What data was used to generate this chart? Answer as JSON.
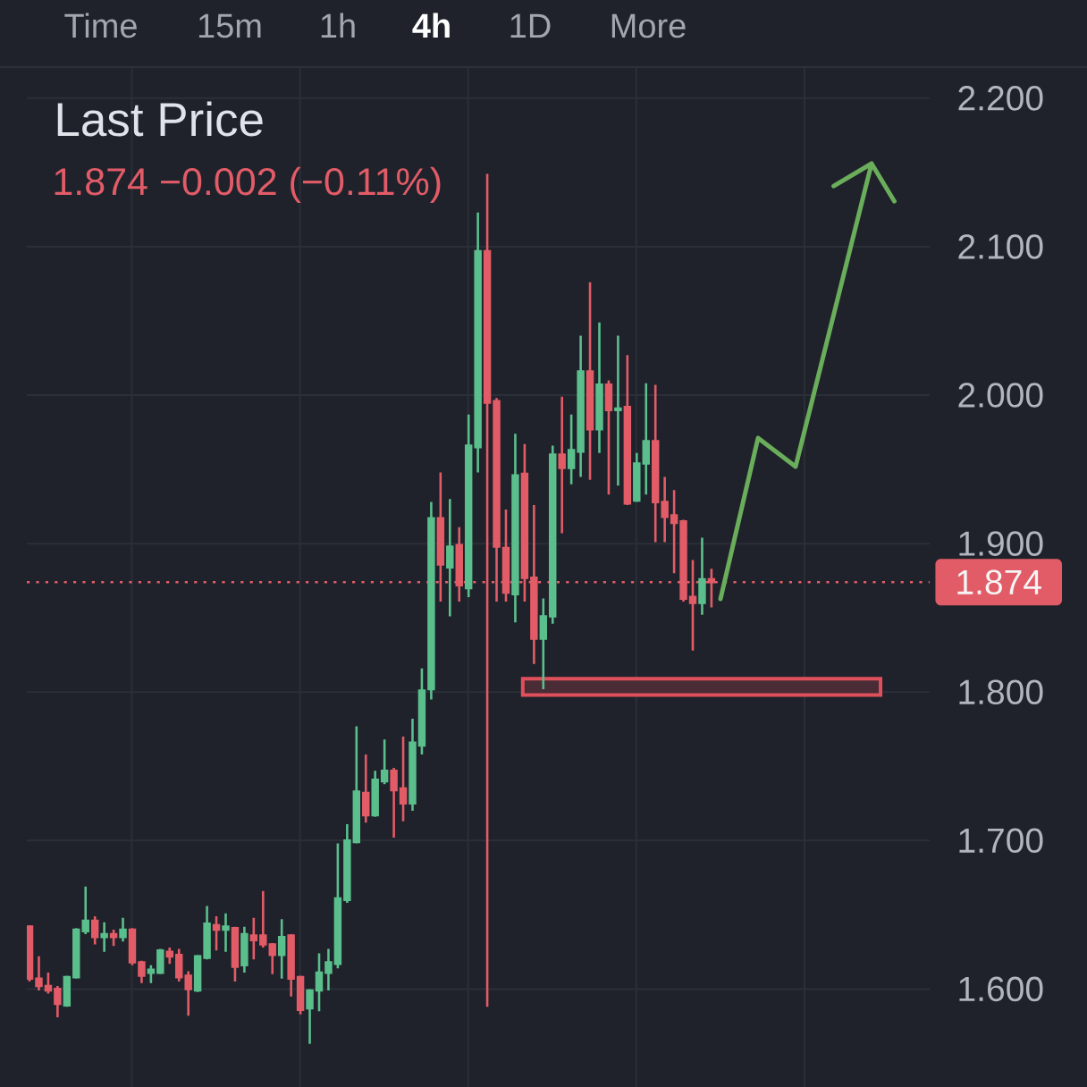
{
  "chart_data": {
    "type": "candlestick",
    "title": "Last Price",
    "subtitle": "1.874 −0.002 (−0.11%)",
    "annotations": [
      "Time",
      "15m",
      "1h",
      "4h",
      "1D",
      "More"
    ],
    "categories": [
      null,
      null,
      null,
      null,
      null,
      null,
      null,
      null,
      null,
      null,
      null,
      null,
      null,
      null,
      null,
      null,
      null,
      null,
      null,
      null,
      null,
      null,
      null,
      null,
      null,
      null,
      null,
      null,
      null,
      null,
      null,
      null,
      null,
      null,
      null,
      null,
      null,
      null,
      null,
      null,
      null,
      null,
      null,
      null,
      null,
      null,
      null,
      null,
      null,
      null,
      null,
      null,
      null,
      null,
      null,
      null,
      null,
      null,
      null,
      null,
      null,
      null,
      null,
      null,
      null,
      null,
      null,
      null,
      null,
      null,
      null,
      null,
      null,
      null,
      null,
      null,
      null,
      null,
      null,
      null,
      null,
      null,
      null,
      null,
      null,
      null,
      null,
      null,
      null,
      null,
      null,
      null,
      null,
      null,
      null,
      null,
      null
    ],
    "ohlc": [
      [
        1.642,
        1.643,
        1.605,
        1.607
      ],
      [
        1.607,
        1.622,
        1.599,
        1.602
      ],
      [
        1.602,
        1.611,
        1.597,
        1.599
      ],
      [
        1.6,
        1.602,
        1.581,
        1.59
      ],
      [
        1.589,
        1.609,
        1.588,
        1.608
      ],
      [
        1.608,
        1.641,
        1.607,
        1.64
      ],
      [
        1.639,
        1.669,
        1.637,
        1.646
      ],
      [
        1.646,
        1.649,
        1.63,
        1.635
      ],
      [
        1.635,
        1.645,
        1.625,
        1.637
      ],
      [
        1.637,
        1.64,
        1.629,
        1.635
      ],
      [
        1.635,
        1.648,
        1.632,
        1.64
      ],
      [
        1.64,
        1.641,
        1.616,
        1.618
      ],
      [
        1.618,
        1.619,
        1.604,
        1.609
      ],
      [
        1.611,
        1.616,
        1.604,
        1.613
      ],
      [
        1.611,
        1.627,
        1.61,
        1.626
      ],
      [
        1.625,
        1.628,
        1.617,
        1.622
      ],
      [
        1.623,
        1.627,
        1.605,
        1.608
      ],
      [
        1.609,
        1.612,
        1.582,
        1.6
      ],
      [
        1.599,
        1.623,
        1.598,
        1.622
      ],
      [
        1.621,
        1.656,
        1.62,
        1.644
      ],
      [
        1.643,
        1.649,
        1.626,
        1.64
      ],
      [
        1.64,
        1.651,
        1.625,
        1.642
      ],
      [
        1.641,
        1.642,
        1.605,
        1.615
      ],
      [
        1.616,
        1.642,
        1.611,
        1.637
      ],
      [
        1.636,
        1.648,
        1.62,
        1.633
      ],
      [
        1.636,
        1.666,
        1.628,
        1.63
      ],
      [
        1.63,
        1.631,
        1.61,
        1.623
      ],
      [
        1.623,
        1.647,
        1.607,
        1.635
      ],
      [
        1.636,
        1.637,
        1.595,
        1.607
      ],
      [
        1.608,
        1.609,
        1.583,
        1.586
      ],
      [
        1.587,
        1.6,
        1.563,
        1.599
      ],
      [
        1.599,
        1.624,
        1.585,
        1.611
      ],
      [
        1.611,
        1.627,
        1.599,
        1.618
      ],
      [
        1.617,
        1.698,
        1.614,
        1.661
      ],
      [
        1.66,
        1.711,
        1.658,
        1.7
      ],
      [
        1.699,
        1.777,
        1.698,
        1.733
      ],
      [
        1.732,
        1.758,
        1.712,
        1.717
      ],
      [
        1.717,
        1.747,
        1.716,
        1.741
      ],
      [
        1.74,
        1.768,
        1.738,
        1.747
      ],
      [
        1.747,
        1.749,
        1.702,
        1.734
      ],
      [
        1.735,
        1.77,
        1.713,
        1.725
      ],
      [
        1.725,
        1.782,
        1.72,
        1.766
      ],
      [
        1.764,
        1.816,
        1.758,
        1.801
      ],
      [
        1.802,
        1.928,
        1.795,
        1.917
      ],
      [
        1.917,
        1.948,
        1.861,
        1.886
      ],
      [
        1.884,
        1.93,
        1.851,
        1.898
      ],
      [
        1.899,
        1.911,
        1.861,
        1.872
      ],
      [
        1.87,
        1.987,
        1.864,
        1.966
      ],
      [
        1.965,
        2.123,
        1.948,
        2.097
      ],
      [
        2.097,
        2.149,
        1.588,
        1.995
      ],
      [
        1.996,
        1.998,
        1.861,
        1.898
      ],
      [
        1.897,
        1.923,
        1.861,
        1.867
      ],
      [
        1.866,
        1.974,
        1.847,
        1.946
      ],
      [
        1.947,
        1.967,
        1.861,
        1.877
      ],
      [
        1.877,
        1.926,
        1.819,
        1.836
      ],
      [
        1.836,
        1.863,
        1.802,
        1.851
      ],
      [
        1.851,
        1.966,
        1.846,
        1.96
      ],
      [
        1.96,
        1.999,
        1.907,
        1.951
      ],
      [
        1.951,
        1.987,
        1.94,
        1.963
      ],
      [
        1.962,
        2.04,
        1.945,
        2.016
      ],
      [
        2.016,
        2.076,
        1.943,
        1.977
      ],
      [
        1.977,
        2.049,
        1.961,
        2.007
      ],
      [
        2.007,
        2.01,
        1.933,
        1.99
      ],
      [
        1.99,
        2.04,
        1.939,
        1.991
      ],
      [
        1.992,
        2.027,
        1.926,
        1.927
      ],
      [
        1.929,
        1.961,
        1.928,
        1.954
      ],
      [
        1.954,
        2.008,
        1.933,
        1.969
      ],
      [
        1.969,
        2.007,
        1.901,
        1.928
      ],
      [
        1.928,
        1.945,
        1.901,
        1.918
      ],
      [
        1.919,
        1.936,
        1.88,
        1.914
      ],
      [
        1.915,
        1.916,
        1.861,
        1.863
      ],
      [
        1.864,
        1.889,
        1.828,
        1.86
      ],
      [
        1.86,
        1.904,
        1.852,
        1.876
      ],
      [
        1.876,
        1.883,
        1.857,
        1.874
      ],
      null,
      null,
      null,
      null,
      null,
      null,
      null,
      null,
      null,
      null,
      null,
      null,
      null,
      null,
      null,
      null,
      null,
      null,
      null,
      null,
      null,
      null,
      null
    ],
    "colors": [
      "#e25c68",
      "#e25c68",
      "#e25c68",
      "#e25c68",
      "#5bbf8d",
      "#5bbf8d",
      "#5bbf8d",
      "#e25c68",
      "#5bbf8d",
      "#e25c68",
      "#5bbf8d",
      "#e25c68",
      "#e25c68",
      "#5bbf8d",
      "#5bbf8d",
      "#e25c68",
      "#e25c68",
      "#e25c68",
      "#5bbf8d",
      "#5bbf8d",
      "#e25c68",
      "#5bbf8d",
      "#e25c68",
      "#5bbf8d",
      "#e25c68",
      "#e25c68",
      "#e25c68",
      "#5bbf8d",
      "#e25c68",
      "#e25c68",
      "#5bbf8d",
      "#5bbf8d",
      "#5bbf8d",
      "#5bbf8d",
      "#5bbf8d",
      "#5bbf8d",
      "#e25c68",
      "#5bbf8d",
      "#5bbf8d",
      "#e25c68",
      "#e25c68",
      "#5bbf8d",
      "#5bbf8d",
      "#5bbf8d",
      "#e25c68",
      "#5bbf8d",
      "#e25c68",
      "#5bbf8d",
      "#5bbf8d",
      "#e25c68",
      "#e25c68",
      "#e25c68",
      "#5bbf8d",
      "#e25c68",
      "#e25c68",
      "#5bbf8d",
      "#5bbf8d",
      "#e25c68",
      "#5bbf8d",
      "#5bbf8d",
      "#e25c68",
      "#5bbf8d",
      "#e25c68",
      "#5bbf8d",
      "#e25c68",
      "#5bbf8d",
      "#5bbf8d",
      "#e25c68",
      "#e25c68",
      "#e25c68",
      "#e25c68",
      "#e25c68",
      "#5bbf8d",
      "#e25c68",
      null,
      null,
      null,
      null,
      null,
      null,
      null,
      null,
      null,
      null,
      null,
      null,
      null,
      null,
      null,
      null,
      null,
      null,
      null,
      null,
      null,
      null,
      null
    ],
    "ylim": [
      1.534,
      2.221
    ],
    "yticks": [
      {
        "value": 1.6,
        "label": "1.600"
      },
      {
        "value": 1.7,
        "label": "1.700"
      },
      {
        "value": 1.8,
        "label": "1.800"
      },
      {
        "value": 1.9,
        "label": "1.900"
      },
      {
        "value": 2.0,
        "label": "2.000"
      },
      {
        "value": 2.1,
        "label": "2.100"
      },
      {
        "value": 2.2,
        "label": "2.200"
      }
    ],
    "ref_lines": [
      {
        "axis": "y",
        "value": 1.874,
        "label": "1.874",
        "color": "#e25c68",
        "line_style": "dotted"
      }
    ],
    "bands": [
      {
        "axis": "y",
        "from": 1.798,
        "to": 1.809,
        "color": "#e0505c"
      }
    ],
    "grid": true,
    "tick_labels": "y"
  }
}
